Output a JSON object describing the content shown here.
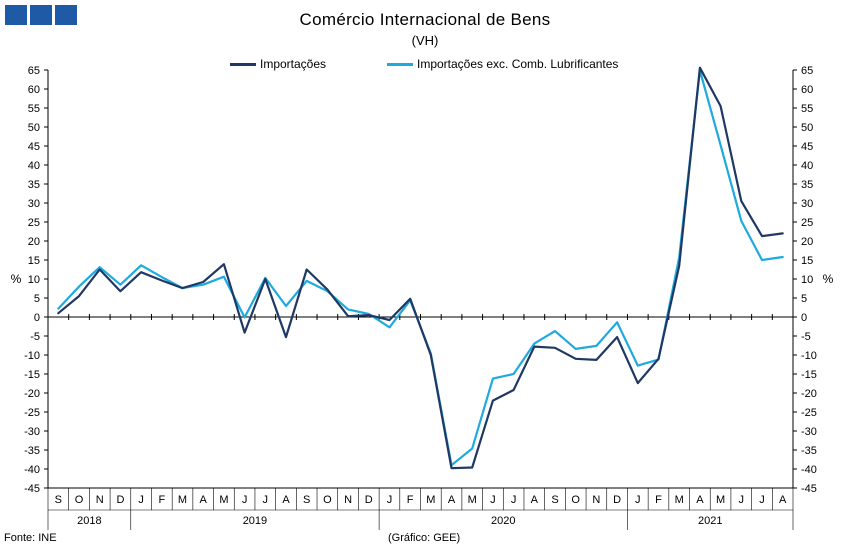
{
  "chart_data": {
    "type": "line",
    "title": "Comércio Internacional de Bens",
    "subtitle": "(VH)",
    "ylabel_left": "%",
    "ylabel_right": "%",
    "ylim": [
      -45,
      65
    ],
    "y_ticks": [
      65,
      60,
      55,
      50,
      45,
      40,
      35,
      30,
      25,
      20,
      15,
      10,
      5,
      0,
      -5,
      -10,
      -15,
      -20,
      -25,
      -30,
      -35,
      -40,
      -45
    ],
    "months": [
      "S",
      "O",
      "N",
      "D",
      "J",
      "F",
      "M",
      "A",
      "M",
      "J",
      "J",
      "A",
      "S",
      "O",
      "N",
      "D",
      "J",
      "F",
      "M",
      "A",
      "M",
      "J",
      "J",
      "A",
      "S",
      "O",
      "N",
      "D",
      "J",
      "F",
      "M",
      "A",
      "M",
      "J",
      "J",
      "A"
    ],
    "years": [
      {
        "label": "2018",
        "start": 0,
        "end": 4
      },
      {
        "label": "2019",
        "start": 4,
        "end": 16
      },
      {
        "label": "2020",
        "start": 16,
        "end": 28
      },
      {
        "label": "2021",
        "start": 28,
        "end": 36
      }
    ],
    "legend_position": "top",
    "grid": false,
    "series": [
      {
        "name": "Importações",
        "color": "#1f3864",
        "values": [
          1,
          5.5,
          12.5,
          6.8,
          11.8,
          9.6,
          7.6,
          9.2,
          13.9,
          -4.1,
          10,
          -5.3,
          12.5,
          7.2,
          0.2,
          0.5,
          -0.8,
          4.8,
          -10,
          -39.8,
          -39.6,
          -22,
          -19.2,
          -7.8,
          -8.1,
          -11,
          -11.3,
          -5.3,
          -17.4,
          -11,
          13.5,
          65.6,
          55.5,
          30.5,
          21.3,
          22
        ]
      },
      {
        "name": "Importações exc. Comb. Lubrificantes",
        "color": "#1eaadf",
        "values": [
          2.2,
          8,
          13.1,
          8.5,
          13.6,
          10.5,
          7.6,
          8.5,
          10.6,
          -0.1,
          10.3,
          2.9,
          9.5,
          6.8,
          2,
          0.8,
          -2.7,
          4.4,
          -9.6,
          -39,
          -34.6,
          -16.2,
          -15,
          -7,
          -3.7,
          -8.4,
          -7.6,
          -1.4,
          -12.8,
          -11.2,
          15.7,
          64.9,
          45.2,
          25.3,
          15,
          15.8
        ]
      }
    ]
  },
  "footer": {
    "source": "Fonte: INE",
    "credit": "(Gráfico: GEE)"
  }
}
